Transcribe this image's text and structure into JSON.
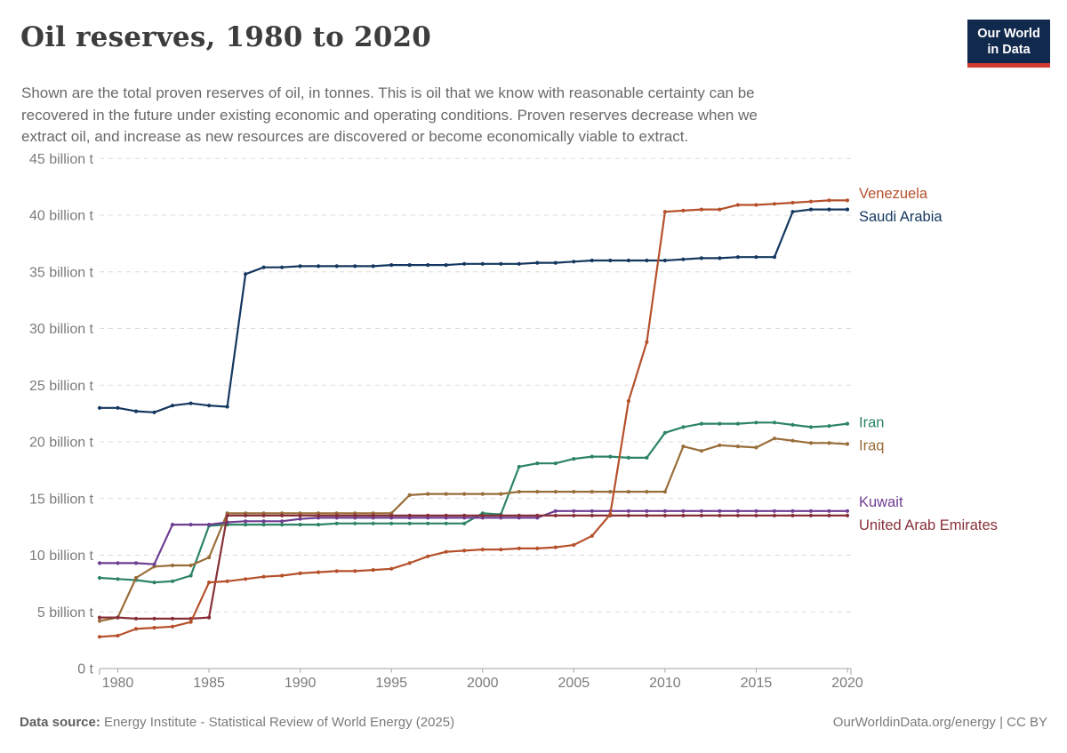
{
  "header": {
    "title": "Oil reserves, 1980 to 2020",
    "subtitle_lines": [
      "Shown are the total proven reserves of oil, in tonnes. This is oil that we know with reasonable certainty can be",
      "recovered in the future under existing economic and operating conditions. Proven reserves decrease when we",
      "extract oil, and increase as new resources are discovered or become economically viable to extract."
    ]
  },
  "logo": {
    "line1": "Our World",
    "line2": "in Data",
    "bg_color": "#12294e",
    "accent_color": "#d23b31"
  },
  "chart_data": {
    "type": "line",
    "title": "Oil reserves, 1980 to 2020",
    "xlabel": "",
    "ylabel": "",
    "unit": "billion tonnes",
    "grid": true,
    "legend_position": "right-end-labels",
    "x_range": [
      1979,
      2020
    ],
    "ylim": [
      0,
      45
    ],
    "x_ticks": [
      1980,
      1985,
      1990,
      1995,
      2000,
      2005,
      2010,
      2015,
      2020
    ],
    "y_ticks": [
      {
        "value": 0,
        "label": "0 t"
      },
      {
        "value": 5,
        "label": "5 billion t"
      },
      {
        "value": 10,
        "label": "10 billion t"
      },
      {
        "value": 15,
        "label": "15 billion t"
      },
      {
        "value": 20,
        "label": "20 billion t"
      },
      {
        "value": 25,
        "label": "25 billion t"
      },
      {
        "value": 30,
        "label": "30 billion t"
      },
      {
        "value": 35,
        "label": "35 billion t"
      },
      {
        "value": 40,
        "label": "40 billion t"
      },
      {
        "value": 45,
        "label": "45 billion t"
      }
    ],
    "series": [
      {
        "name": "Saudi Arabia",
        "color": "#14375f",
        "values": [
          23.0,
          23.0,
          22.7,
          22.6,
          23.2,
          23.4,
          23.2,
          23.1,
          34.8,
          35.4,
          35.4,
          35.5,
          35.5,
          35.5,
          35.5,
          35.5,
          35.6,
          35.6,
          35.6,
          35.6,
          35.7,
          35.7,
          35.7,
          35.7,
          35.8,
          35.8,
          35.9,
          36.0,
          36.0,
          36.0,
          36.0,
          36.0,
          36.1,
          36.2,
          36.2,
          36.3,
          36.3,
          36.3,
          40.3,
          40.5,
          40.5,
          40.5
        ]
      },
      {
        "name": "Iran",
        "color": "#2c8465",
        "values": [
          8.0,
          7.9,
          7.8,
          7.6,
          7.7,
          8.2,
          12.6,
          12.7,
          12.7,
          12.7,
          12.7,
          12.7,
          12.7,
          12.8,
          12.8,
          12.8,
          12.8,
          12.8,
          12.8,
          12.8,
          12.8,
          13.7,
          13.6,
          17.8,
          18.1,
          18.1,
          18.5,
          18.7,
          18.7,
          18.6,
          18.6,
          20.8,
          21.3,
          21.6,
          21.6,
          21.6,
          21.7,
          21.7,
          21.5,
          21.3,
          21.4,
          21.6
        ]
      },
      {
        "name": "Iraq",
        "color": "#996d39",
        "values": [
          4.2,
          4.5,
          8.0,
          9.0,
          9.1,
          9.1,
          9.8,
          13.7,
          13.7,
          13.7,
          13.7,
          13.7,
          13.7,
          13.7,
          13.7,
          13.7,
          13.7,
          15.3,
          15.4,
          15.4,
          15.4,
          15.4,
          15.4,
          15.6,
          15.6,
          15.6,
          15.6,
          15.6,
          15.6,
          15.6,
          15.6,
          15.6,
          19.6,
          19.2,
          19.7,
          19.6,
          19.5,
          20.3,
          20.1,
          19.9,
          19.9,
          19.8
        ]
      },
      {
        "name": "Kuwait",
        "color": "#6d3e91",
        "values": [
          9.3,
          9.3,
          9.3,
          9.2,
          12.7,
          12.7,
          12.7,
          12.9,
          13.0,
          13.0,
          13.0,
          13.2,
          13.3,
          13.3,
          13.3,
          13.3,
          13.3,
          13.3,
          13.3,
          13.3,
          13.3,
          13.3,
          13.3,
          13.3,
          13.3,
          13.9,
          13.9,
          13.9,
          13.9,
          13.9,
          13.9,
          13.9,
          13.9,
          13.9,
          13.9,
          13.9,
          13.9,
          13.9,
          13.9,
          13.9,
          13.9,
          13.9
        ]
      },
      {
        "name": "United Arab Emirates",
        "color": "#883039",
        "values": [
          4.5,
          4.5,
          4.4,
          4.4,
          4.4,
          4.4,
          4.5,
          13.5,
          13.5,
          13.5,
          13.5,
          13.5,
          13.5,
          13.5,
          13.5,
          13.5,
          13.5,
          13.5,
          13.5,
          13.5,
          13.5,
          13.5,
          13.5,
          13.5,
          13.5,
          13.5,
          13.5,
          13.5,
          13.5,
          13.5,
          13.5,
          13.5,
          13.5,
          13.5,
          13.5,
          13.5,
          13.5,
          13.5,
          13.5,
          13.5,
          13.5,
          13.5
        ]
      },
      {
        "name": "Venezuela",
        "color": "#b5502b",
        "values": [
          2.8,
          2.9,
          3.5,
          3.6,
          3.7,
          4.1,
          7.6,
          7.7,
          7.9,
          8.1,
          8.2,
          8.4,
          8.5,
          8.6,
          8.6,
          8.7,
          8.8,
          9.3,
          9.9,
          10.3,
          10.4,
          10.5,
          10.5,
          10.6,
          10.6,
          10.7,
          10.9,
          11.7,
          13.6,
          23.6,
          28.8,
          40.3,
          40.4,
          40.5,
          40.5,
          40.9,
          40.9,
          41.0,
          41.1,
          41.2,
          41.3,
          41.3
        ]
      }
    ]
  },
  "footer": {
    "source_label": "Data source:",
    "source_text": " Energy Institute - Statistical Review of World Energy (2025)",
    "credit": "OurWorldinData.org/energy | CC BY"
  },
  "style": {
    "grid_color": "#dcdcdc",
    "axis_color": "#a3a3a3",
    "tick_label_color": "#7b7b7b"
  }
}
